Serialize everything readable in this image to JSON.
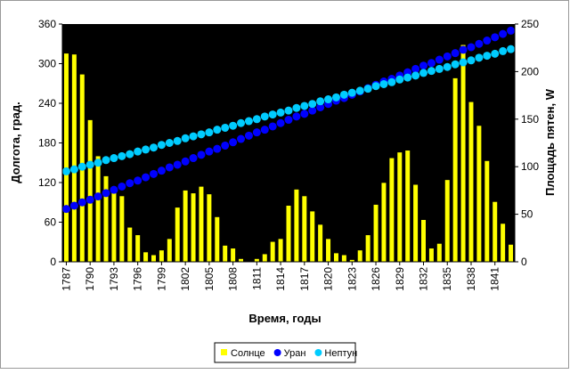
{
  "chart_data": {
    "type": "bar_line",
    "xlabel": "Время, годы",
    "ylabel": "Долгота, град.",
    "y2label": "Площадь пятен, W",
    "categories": [
      "1787",
      null,
      null,
      "1790",
      null,
      null,
      "1793",
      null,
      null,
      "1796",
      null,
      null,
      "1799",
      null,
      null,
      "1802",
      null,
      null,
      "1805",
      null,
      null,
      "1808",
      null,
      null,
      "1811",
      null,
      null,
      "1814",
      null,
      null,
      "1817",
      null,
      null,
      "1820",
      null,
      null,
      "1823",
      null,
      null,
      "1826",
      null,
      null,
      "1829",
      null,
      null,
      "1832",
      null,
      null,
      "1835",
      null,
      null,
      "1838",
      null,
      null,
      "1841",
      null,
      null
    ],
    "ylim": [
      0,
      360
    ],
    "yticks": [
      0,
      60,
      120,
      180,
      240,
      300,
      360
    ],
    "y2lim": [
      0,
      250
    ],
    "y2ticks": [
      0,
      50,
      100,
      150,
      200,
      250
    ],
    "series": [
      {
        "name": "Солнце",
        "kind": "bar",
        "axis": "y2",
        "color": "#ffff00",
        "values": [
          219,
          218,
          197,
          149,
          111,
          90,
          78,
          69,
          36,
          28,
          10,
          7,
          12,
          24,
          57,
          75,
          72,
          79,
          71,
          47,
          17,
          14,
          3,
          0,
          3,
          8,
          21,
          24,
          59,
          76,
          69,
          53,
          39,
          24,
          9,
          7,
          2,
          12,
          28,
          60,
          83,
          109,
          115,
          117,
          81,
          44,
          14,
          19,
          86,
          193,
          228,
          168,
          143,
          106,
          63,
          40,
          18
        ]
      },
      {
        "name": "Уран",
        "kind": "dots",
        "color": "#0000ff",
        "values": [
          80,
          85,
          90,
          94,
          99,
          104,
          109,
          114,
          119,
          123,
          128,
          133,
          138,
          143,
          147,
          152,
          157,
          162,
          167,
          171,
          176,
          181,
          186,
          191,
          196,
          200,
          205,
          210,
          215,
          220,
          224,
          229,
          234,
          239,
          244,
          248,
          253,
          258,
          263,
          268,
          273,
          277,
          282,
          287,
          292,
          297,
          301,
          306,
          311,
          316,
          321,
          325,
          330,
          335,
          340,
          345,
          350
        ]
      },
      {
        "name": "Нептун",
        "kind": "dots",
        "color": "#00ccff",
        "values": [
          137,
          140,
          144,
          147,
          150,
          154,
          157,
          160,
          163,
          167,
          170,
          173,
          177,
          180,
          183,
          187,
          190,
          193,
          196,
          200,
          203,
          206,
          210,
          213,
          216,
          220,
          223,
          226,
          229,
          233,
          236,
          239,
          243,
          246,
          249,
          253,
          256,
          259,
          262,
          266,
          269,
          272,
          276,
          279,
          282,
          286,
          289,
          292,
          295,
          299,
          302,
          305,
          309,
          312,
          315,
          319,
          322
        ]
      }
    ]
  }
}
